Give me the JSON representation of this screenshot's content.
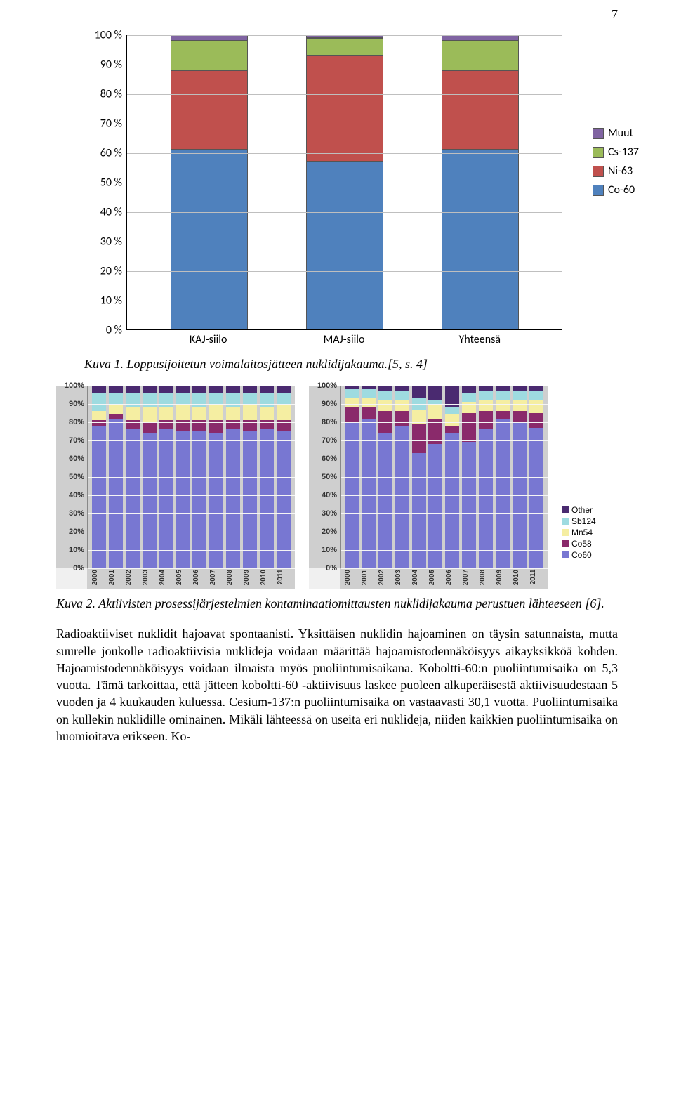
{
  "page_number": "7",
  "chart1": {
    "type": "stacked-bar",
    "y_ticks": [
      "0 %",
      "10 %",
      "20 %",
      "30 %",
      "40 %",
      "50 %",
      "60 %",
      "70 %",
      "80 %",
      "90 %",
      "100 %"
    ],
    "ylim": [
      0,
      100
    ],
    "categories": [
      "KAJ-siilo",
      "MAJ-siilo",
      "Yhteensä"
    ],
    "series": [
      "Co-60",
      "Ni-63",
      "Cs-137",
      "Muut"
    ],
    "colors": {
      "Co-60": "#4f81bd",
      "Ni-63": "#c0504d",
      "Cs-137": "#9bbb59",
      "Muut": "#8064a2"
    },
    "data": {
      "KAJ-siilo": {
        "Co-60": 61,
        "Ni-63": 27,
        "Cs-137": 10,
        "Muut": 2
      },
      "MAJ-siilo": {
        "Co-60": 57,
        "Ni-63": 36,
        "Cs-137": 6,
        "Muut": 1
      },
      "Yhteensä": {
        "Co-60": 61,
        "Ni-63": 27,
        "Cs-137": 10,
        "Muut": 2
      }
    },
    "legend": [
      "Muut",
      "Cs-137",
      "Ni-63",
      "Co-60"
    ],
    "background_color": "#ffffff",
    "grid_color": "#bfbfbf",
    "font_family": "Calibri",
    "caption": "Kuva 1. Loppusijoitetun voimalaitosjätteen nuklidijakauma.[5, s. 4]"
  },
  "chart2": {
    "type": "stacked-bar-pair",
    "y_ticks": [
      "0%",
      "10%",
      "20%",
      "30%",
      "40%",
      "50%",
      "60%",
      "70%",
      "80%",
      "90%",
      "100%"
    ],
    "x_labels": [
      "2000",
      "2001",
      "2002",
      "2003",
      "2004",
      "2005",
      "2006",
      "2007",
      "2008",
      "2009",
      "2010",
      "2011"
    ],
    "series": [
      "Co60",
      "Co58",
      "Mn54",
      "Sb124",
      "Other"
    ],
    "colors": {
      "Co60": "#7877d2",
      "Co58": "#8a2a6b",
      "Mn54": "#f5eea2",
      "Sb124": "#9edbe0",
      "Other": "#4a2a70"
    },
    "left_data": [
      {
        "Co60": 78,
        "Co58": 3,
        "Mn54": 5,
        "Sb124": 10,
        "Other": 4
      },
      {
        "Co60": 82,
        "Co58": 2,
        "Mn54": 5,
        "Sb124": 7,
        "Other": 4
      },
      {
        "Co60": 76,
        "Co58": 5,
        "Mn54": 7,
        "Sb124": 8,
        "Other": 4
      },
      {
        "Co60": 74,
        "Co58": 6,
        "Mn54": 8,
        "Sb124": 8,
        "Other": 4
      },
      {
        "Co60": 76,
        "Co58": 5,
        "Mn54": 7,
        "Sb124": 8,
        "Other": 4
      },
      {
        "Co60": 75,
        "Co58": 6,
        "Mn54": 8,
        "Sb124": 7,
        "Other": 4
      },
      {
        "Co60": 75,
        "Co58": 6,
        "Mn54": 7,
        "Sb124": 8,
        "Other": 4
      },
      {
        "Co60": 74,
        "Co58": 7,
        "Mn54": 8,
        "Sb124": 7,
        "Other": 4
      },
      {
        "Co60": 76,
        "Co58": 5,
        "Mn54": 7,
        "Sb124": 8,
        "Other": 4
      },
      {
        "Co60": 75,
        "Co58": 6,
        "Mn54": 8,
        "Sb124": 7,
        "Other": 4
      },
      {
        "Co60": 76,
        "Co58": 5,
        "Mn54": 7,
        "Sb124": 8,
        "Other": 4
      },
      {
        "Co60": 75,
        "Co58": 6,
        "Mn54": 8,
        "Sb124": 7,
        "Other": 4
      }
    ],
    "right_data": [
      {
        "Co60": 80,
        "Co58": 8,
        "Mn54": 5,
        "Sb124": 5,
        "Other": 2
      },
      {
        "Co60": 82,
        "Co58": 6,
        "Mn54": 5,
        "Sb124": 5,
        "Other": 2
      },
      {
        "Co60": 74,
        "Co58": 12,
        "Mn54": 6,
        "Sb124": 5,
        "Other": 3
      },
      {
        "Co60": 78,
        "Co58": 8,
        "Mn54": 6,
        "Sb124": 5,
        "Other": 3
      },
      {
        "Co60": 63,
        "Co58": 16,
        "Mn54": 8,
        "Sb124": 6,
        "Other": 7
      },
      {
        "Co60": 68,
        "Co58": 14,
        "Mn54": 7,
        "Sb124": 3,
        "Other": 8
      },
      {
        "Co60": 74,
        "Co58": 4,
        "Mn54": 6,
        "Sb124": 4,
        "Other": 12
      },
      {
        "Co60": 69,
        "Co58": 16,
        "Mn54": 6,
        "Sb124": 5,
        "Other": 4
      },
      {
        "Co60": 76,
        "Co58": 10,
        "Mn54": 6,
        "Sb124": 5,
        "Other": 3
      },
      {
        "Co60": 82,
        "Co58": 4,
        "Mn54": 6,
        "Sb124": 5,
        "Other": 3
      },
      {
        "Co60": 80,
        "Co58": 6,
        "Mn54": 6,
        "Sb124": 5,
        "Other": 3
      },
      {
        "Co60": 77,
        "Co58": 8,
        "Mn54": 7,
        "Sb124": 5,
        "Other": 3
      }
    ],
    "legend": [
      "Other",
      "Sb124",
      "Mn54",
      "Co58",
      "Co60"
    ],
    "plot_bg": "#cfcfcf",
    "grid_color": "#f5f5f5",
    "caption": "Kuva 2. Aktiivisten prosessijärjestelmien kontaminaatiomittausten nuklidijakauma perustuen lähteeseen [6]."
  },
  "body_paragraph": "Radioaktiiviset nuklidit hajoavat spontaanisti. Yksittäisen nuklidin hajoaminen on täysin satunnaista, mutta suurelle joukolle radioaktiivisia nuklideja voidaan määrittää hajoamistodennäköisyys aikayksikköä kohden. Hajoamistodennäköisyys voidaan ilmaista myös puoliintumisaikana. Koboltti-60:n puoliintumisaika on 5,3 vuotta. Tämä tarkoittaa, että jätteen koboltti-60 -aktiivisuus laskee puoleen alkuperäisestä aktiivisuudestaan 5 vuoden ja 4 kuukauden kuluessa. Cesium-137:n puoliintumisaika on vastaavasti 30,1 vuotta. Puoliintumisaika on kullekin nuklidille ominainen. Mikäli lähteessä on useita eri nuklideja, niiden kaikkien puoliintumisaika on huomioitava erikseen. Ko-"
}
